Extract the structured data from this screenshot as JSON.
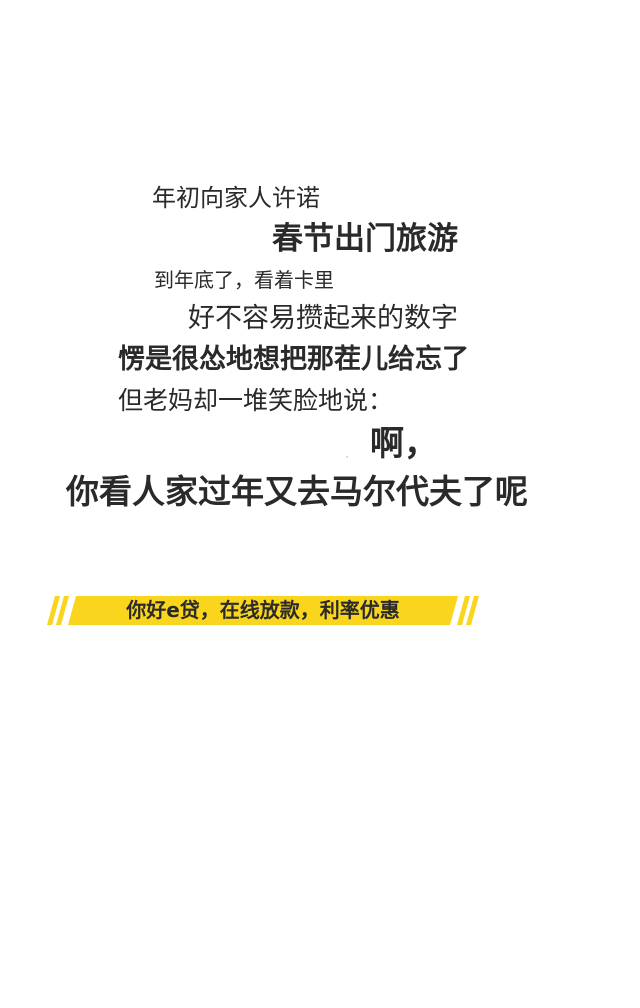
{
  "story": {
    "line1": "年初向家人许诺",
    "line2": "春节出门旅游",
    "line3": "到年底了，看着卡里",
    "line4": "好不容易攒起来的数字",
    "line5": "愣是很怂地想把那茬儿给忘了",
    "line6": "但老妈却一堆笑脸地说：",
    "line7": "啊，",
    "line8": "你看人家过年又去马尔代夫了呢"
  },
  "banner": {
    "text": "你好e贷，在线放款，利率优惠",
    "color": "#f9d51e"
  }
}
